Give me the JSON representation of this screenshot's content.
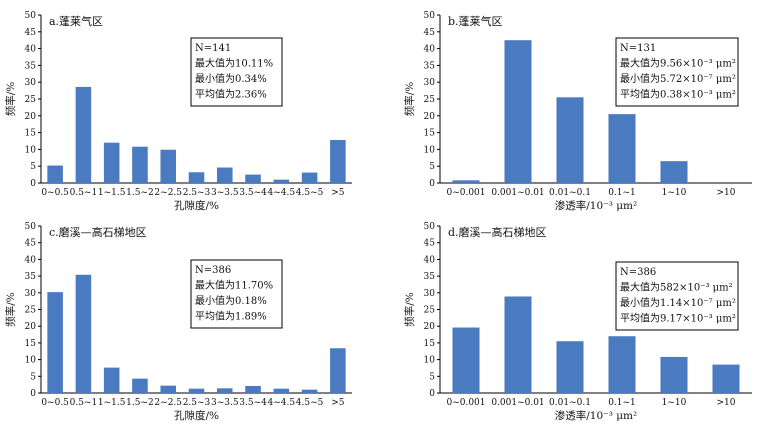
{
  "chart_data": [
    {
      "type": "bar",
      "title": "a.蓬莱气区",
      "xlabel": "孔隙度/%",
      "ylabel": "频率/%",
      "ylim": [
        0,
        50
      ],
      "yticks": [
        "0",
        "5",
        "10",
        "15",
        "20",
        "25",
        "30",
        "35",
        "40",
        "45",
        "50"
      ],
      "categories": [
        "0~0.5",
        "0.5~1",
        "1~1.5",
        "1.5~2",
        "2~2.5",
        "2.5~3",
        "3~3.5",
        "3.5~4",
        "4~4.5",
        "4.5~5",
        ">5"
      ],
      "values": [
        5.2,
        28.6,
        12.0,
        10.8,
        9.9,
        3.2,
        4.6,
        2.5,
        1.0,
        3.1,
        12.8
      ],
      "stats": [
        "N=141",
        "最大值为10.11%",
        "最小值为0.34%",
        "平均值为2.36%"
      ],
      "bar_color": "#4a7bc0"
    },
    {
      "type": "bar",
      "title": "b.蓬莱气区",
      "xlabel": "渗透率/10⁻³ μm²",
      "ylabel": "频率/%",
      "ylim": [
        0,
        50
      ],
      "yticks": [
        "0",
        "5",
        "10",
        "15",
        "20",
        "25",
        "30",
        "35",
        "40",
        "45",
        "50"
      ],
      "categories": [
        "0~0.001",
        "0.001~0.01",
        "0.01~0.1",
        "0.1~1",
        "1~10",
        ">10"
      ],
      "values": [
        0.8,
        42.5,
        25.5,
        20.5,
        6.5,
        0
      ],
      "stats": [
        "N=131",
        "最大值为9.56×10⁻³ μm²",
        "最小值为5.72×10⁻⁷ μm²",
        "平均值为0.38×10⁻³ μm²"
      ],
      "bar_color": "#4a7bc0"
    },
    {
      "type": "bar",
      "title": "c.磨溪—高石梯地区",
      "xlabel": "孔隙度/%",
      "ylabel": "频率/%",
      "ylim": [
        0,
        50
      ],
      "yticks": [
        "0",
        "5",
        "10",
        "15",
        "20",
        "25",
        "30",
        "35",
        "40",
        "45",
        "50"
      ],
      "categories": [
        "0~0.5",
        "0.5~1",
        "1~1.5",
        "1.5~2",
        "2~2.5",
        "2.5~3",
        "3~3.5",
        "3.5~4",
        "4~4.5",
        "4.5~5",
        ">5"
      ],
      "values": [
        30.2,
        35.4,
        7.6,
        4.3,
        2.2,
        1.3,
        1.4,
        2.1,
        1.3,
        1.0,
        13.4
      ],
      "stats": [
        "N=386",
        "最大值为11.70%",
        "最小值为0.18%",
        "平均值为1.89%"
      ],
      "bar_color": "#4a7bc0"
    },
    {
      "type": "bar",
      "title": "d.磨溪—高石梯地区",
      "xlabel": "渗透率/10⁻³ μm²",
      "ylabel": "频率/%",
      "ylim": [
        0,
        50
      ],
      "yticks": [
        "0",
        "5",
        "10",
        "15",
        "20",
        "25",
        "30",
        "35",
        "40",
        "45",
        "50"
      ],
      "categories": [
        "0~0.001",
        "0.001~0.01",
        "0.01~0.1",
        "0.1~1",
        "1~10",
        ">10"
      ],
      "values": [
        19.6,
        28.9,
        15.5,
        17.0,
        10.8,
        8.5
      ],
      "stats": [
        "N=386",
        "最大值为582×10⁻³ μm²",
        "最小值为1.14×10⁻⁷ μm²",
        "平均值为9.17×10⁻³ μm²"
      ],
      "bar_color": "#4a7bc0"
    }
  ]
}
